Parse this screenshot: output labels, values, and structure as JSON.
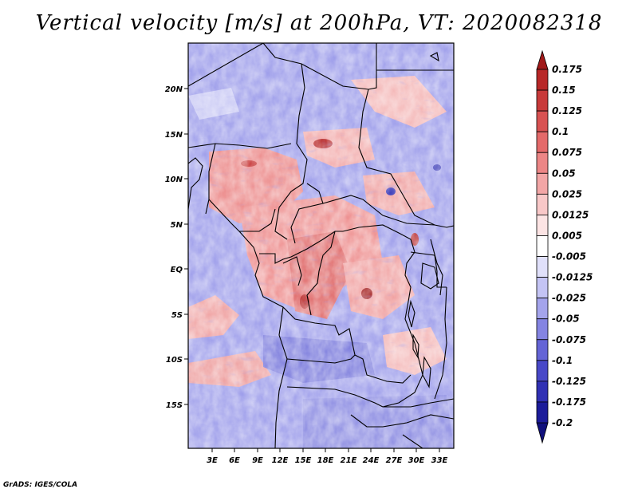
{
  "title": "Vertical velocity [m/s] at 200hPa, VT: 2020082318",
  "credit": "GrADS: IGES/COLA",
  "map": {
    "lon_range": [
      0,
      35
    ],
    "lat_range": [
      -20,
      25
    ],
    "lon_ticks": [
      "3E",
      "6E",
      "9E",
      "12E",
      "15E",
      "18E",
      "21E",
      "24E",
      "27E",
      "30E",
      "33E"
    ],
    "lat_ticks": [
      "20N",
      "15N",
      "10N",
      "5N",
      "EQ",
      "5S",
      "10S",
      "15S"
    ]
  },
  "colorbar": {
    "labels": [
      "0.175",
      "0.15",
      "0.125",
      "0.1",
      "0.075",
      "0.05",
      "0.025",
      "0.0125",
      "0.005",
      "-0.005",
      "-0.0125",
      "-0.025",
      "-0.05",
      "-0.075",
      "-0.1",
      "-0.125",
      "-0.175",
      "-0.2"
    ],
    "colors": [
      "#a01818",
      "#b82828",
      "#c83a3a",
      "#d85252",
      "#e46a6a",
      "#ec8686",
      "#f2a6a6",
      "#f8c8c8",
      "#fce4e4",
      "#ffffff",
      "#e0e0fa",
      "#c4c4f4",
      "#a4a4ec",
      "#8484e2",
      "#6464d6",
      "#4848c8",
      "#3030b4",
      "#1c1c9a",
      "#10107c"
    ]
  }
}
